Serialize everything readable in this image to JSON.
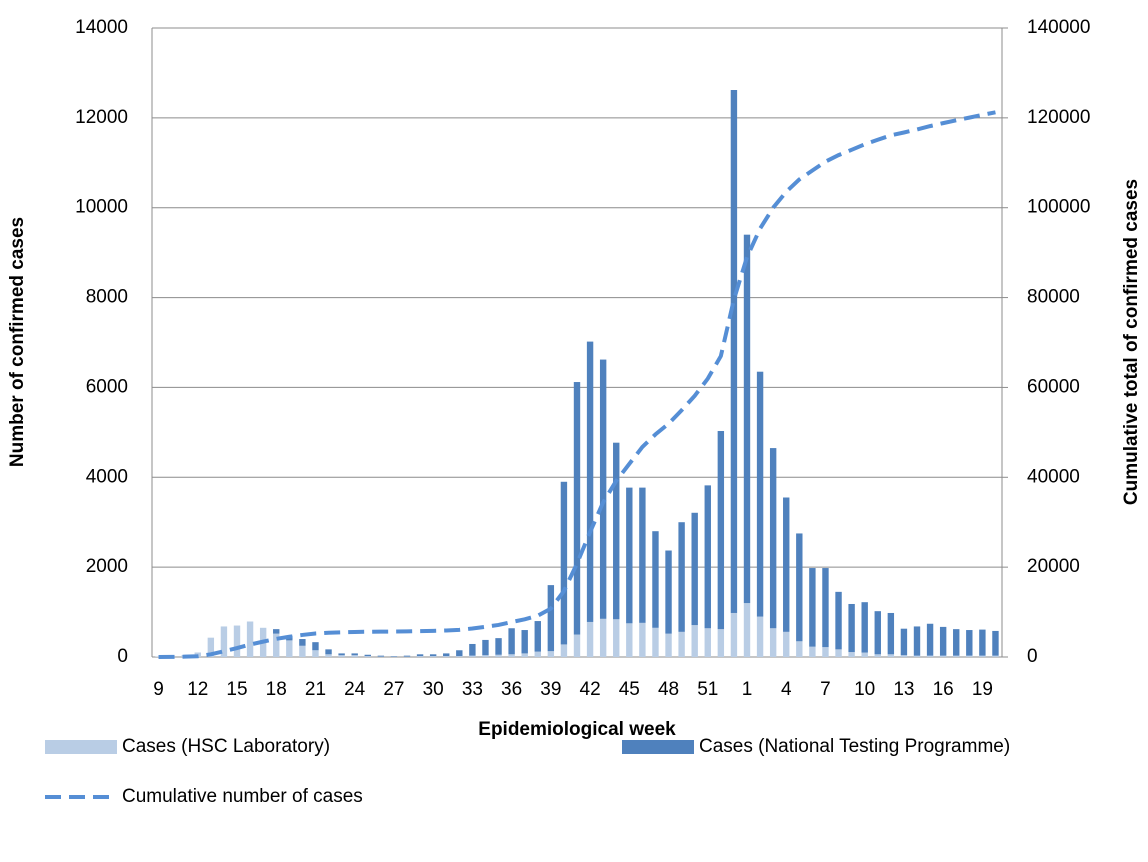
{
  "chart_data": {
    "type": "bar",
    "stacked": true,
    "grid": true,
    "x_label": "Epidemiological week",
    "y_label": "Number of confirmed cases",
    "y2_label": "Cumulative total of confirmed cases",
    "categories": [
      "9",
      null,
      null,
      "12",
      null,
      null,
      "15",
      null,
      null,
      "18",
      null,
      null,
      "21",
      null,
      null,
      "24",
      null,
      null,
      "27",
      null,
      null,
      "30",
      null,
      null,
      "33",
      null,
      null,
      "36",
      null,
      null,
      "39",
      null,
      null,
      "42",
      null,
      null,
      "45",
      null,
      null,
      "48",
      null,
      null,
      "51",
      null,
      null,
      "1",
      null,
      null,
      "4",
      null,
      null,
      "7",
      null,
      null,
      "10",
      null,
      null,
      "13",
      null,
      null,
      "16",
      null,
      null,
      "19",
      null
    ],
    "ylim": [
      0,
      14000
    ],
    "yticks": [
      0,
      2000,
      4000,
      6000,
      8000,
      10000,
      12000,
      14000
    ],
    "y2lim": [
      0,
      140000
    ],
    "y2ticks": [
      0,
      20000,
      40000,
      60000,
      80000,
      100000,
      120000,
      140000
    ],
    "series": [
      {
        "name": "Cases (HSC Laboratory)",
        "type": "bar",
        "color": "#b9cde5",
        "values": [
          10,
          20,
          40,
          100,
          430,
          680,
          700,
          790,
          650,
          520,
          370,
          250,
          150,
          60,
          40,
          40,
          20,
          10,
          10,
          10,
          20,
          20,
          20,
          20,
          30,
          40,
          50,
          60,
          80,
          120,
          130,
          280,
          500,
          780,
          850,
          840,
          750,
          760,
          650,
          520,
          560,
          710,
          640,
          620,
          980,
          1200,
          900,
          640,
          560,
          350,
          230,
          220,
          170,
          110,
          100,
          60,
          60,
          40,
          30,
          30,
          30,
          30,
          30,
          30,
          30
        ]
      },
      {
        "name": "Cases (National Testing Programme)",
        "type": "bar",
        "color": "#4f81bd",
        "values": [
          0,
          0,
          0,
          0,
          0,
          0,
          0,
          0,
          0,
          100,
          100,
          150,
          180,
          110,
          40,
          40,
          30,
          20,
          10,
          20,
          40,
          40,
          60,
          130,
          260,
          340,
          370,
          580,
          520,
          680,
          1470,
          3620,
          5620,
          6240,
          5770,
          3930,
          3020,
          3010,
          2150,
          1850,
          2440,
          2500,
          3180,
          4410,
          11640,
          8200,
          5450,
          4010,
          2990,
          2400,
          1750,
          1760,
          1280,
          1070,
          1120,
          960,
          920,
          590,
          650,
          710,
          640,
          590,
          570,
          580,
          550
        ]
      },
      {
        "name": "Cumulative number of cases",
        "type": "line",
        "axis": "y2",
        "color": "#558ed5",
        "dashed": true,
        "values": [
          10,
          30,
          70,
          170,
          600,
          1280,
          1980,
          2770,
          3420,
          4040,
          4510,
          4910,
          5240,
          5410,
          5490,
          5570,
          5620,
          5650,
          5670,
          5700,
          5760,
          5820,
          5900,
          6050,
          6340,
          6720,
          7140,
          7780,
          8380,
          9180,
          10780,
          14680,
          20800,
          27820,
          34440,
          39210,
          42980,
          46750,
          49550,
          51920,
          54920,
          58130,
          61950,
          66980,
          79600,
          89000,
          95350,
          100000,
          103550,
          106300,
          108280,
          110260,
          111710,
          112890,
          114110,
          115130,
          116110,
          116740,
          117420,
          118160,
          118830,
          119450,
          120050,
          120660,
          121240
        ]
      }
    ]
  }
}
